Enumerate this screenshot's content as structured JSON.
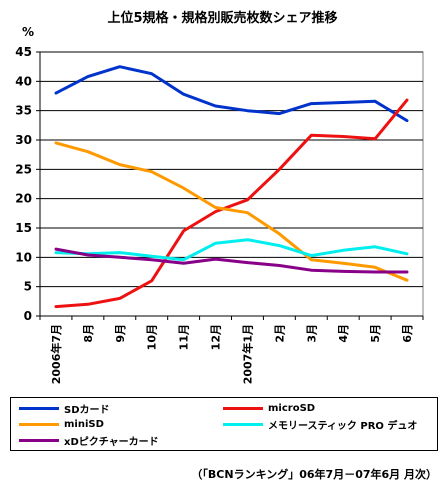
{
  "chart_data": {
    "type": "line",
    "title": "上位5規格・規格別販売枚数シェア推移",
    "ylabel": "%",
    "xlabel": "",
    "ylim": [
      0,
      45
    ],
    "yticks": [
      0,
      5,
      10,
      15,
      20,
      25,
      30,
      35,
      40,
      45
    ],
    "grid": "horizontal",
    "legend_position": "bottom",
    "categories": [
      "2006年7月",
      "8月",
      "9月",
      "10月",
      "11月",
      "12月",
      "2007年1月",
      "2月",
      "3月",
      "4月",
      "5月",
      "6月"
    ],
    "series": [
      {
        "name": "SDカード",
        "color": "#0033cc",
        "values": [
          38.0,
          40.8,
          42.5,
          41.3,
          37.8,
          35.8,
          35.0,
          34.5,
          36.2,
          36.4,
          36.6,
          33.3
        ]
      },
      {
        "name": "microSD",
        "color": "#ee1111",
        "values": [
          1.6,
          2.0,
          3.0,
          6.0,
          14.5,
          17.8,
          19.8,
          25.0,
          30.8,
          30.6,
          30.2,
          36.8
        ]
      },
      {
        "name": "miniSD",
        "color": "#ff9900",
        "values": [
          29.5,
          28.0,
          25.8,
          24.6,
          21.8,
          18.5,
          17.6,
          14.0,
          9.6,
          9.0,
          8.3,
          6.1
        ]
      },
      {
        "name": "メモリースティック PRO デュオ",
        "color": "#00eeee",
        "values": [
          10.8,
          10.6,
          10.8,
          10.2,
          9.6,
          12.4,
          13.0,
          12.0,
          10.3,
          11.2,
          11.8,
          10.6
        ]
      },
      {
        "name": "xDピクチャーカード",
        "color": "#880088",
        "values": [
          11.4,
          10.4,
          10.0,
          9.6,
          9.0,
          9.7,
          9.1,
          8.6,
          7.8,
          7.6,
          7.5,
          7.5
        ]
      }
    ]
  },
  "legend": {
    "items": [
      "SDカード",
      "microSD",
      "miniSD",
      "メモリースティック PRO デュオ",
      "xDピクチャーカード"
    ]
  },
  "source_note": "（「BCNランキング」06年7月－07年6月 月次）"
}
